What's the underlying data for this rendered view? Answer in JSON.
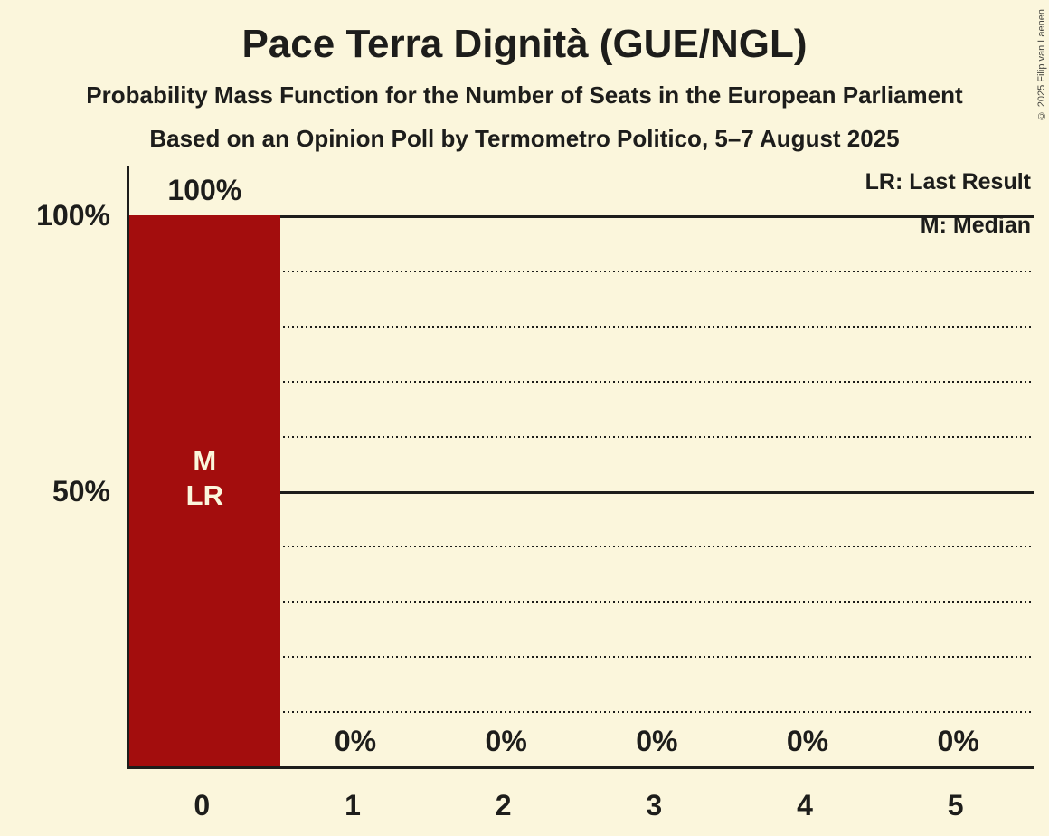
{
  "copyright": "© 2025 Filip van Laenen",
  "header": {
    "title": "Pace Terra Dignità (GUE/NGL)",
    "subtitle": "Probability Mass Function for the Number of Seats in the European Parliament",
    "source": "Based on an Opinion Poll by Termometro Politico, 5–7 August 2025"
  },
  "legend": {
    "lr": "LR: Last Result",
    "m": "M: Median"
  },
  "colors": {
    "background": "#FBF6DC",
    "bar": "#A30D0D",
    "ink": "#1D1D1B",
    "bar_text": "#FBF6DC"
  },
  "chart_data": {
    "type": "bar",
    "title": "Pace Terra Dignità (GUE/NGL)",
    "subtitle": "Probability Mass Function for the Number of Seats in the European Parliament",
    "source_line": "Based on an Opinion Poll by Termometro Politico, 5–7 August 2025",
    "xlabel": "",
    "ylabel": "",
    "categories": [
      "0",
      "1",
      "2",
      "3",
      "4",
      "5"
    ],
    "values": [
      100,
      0,
      0,
      0,
      0,
      0
    ],
    "bar_labels": [
      "100%",
      "0%",
      "0%",
      "0%",
      "0%",
      "0%"
    ],
    "ylim": [
      0,
      100
    ],
    "yticks": [
      {
        "value": 100,
        "label": "100%"
      },
      {
        "value": 50,
        "label": "50%"
      }
    ],
    "gridlines": {
      "dotted_levels": [
        10,
        20,
        30,
        40,
        60,
        70,
        80,
        90
      ],
      "solid_levels": [
        50,
        100
      ]
    },
    "legend_position": "top-right",
    "legend_entries": [
      "LR: Last Result",
      "M: Median"
    ],
    "annotations": [
      {
        "category_index": 0,
        "lines": [
          "M",
          "LR"
        ],
        "meaning": "median and last result at 0 seats"
      }
    ]
  }
}
